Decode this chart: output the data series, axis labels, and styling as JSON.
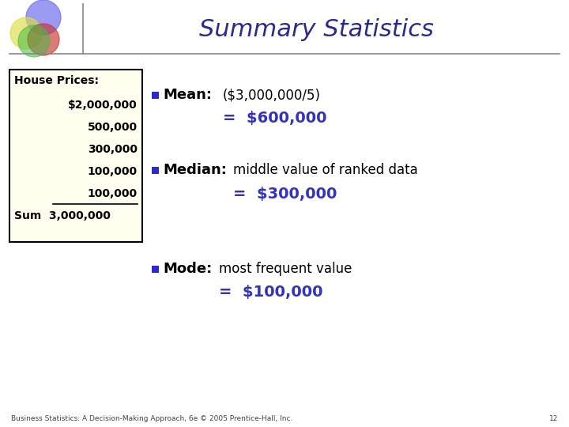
{
  "title": "Summary Statistics",
  "title_color": "#2B2B8C",
  "title_fontsize": 22,
  "bg_color": "#FFFFFF",
  "slide_number": "12",
  "footer": "Business Statistics: A Decision-Making Approach, 6e © 2005 Prentice-Hall, Inc.",
  "house_prices_label": "House Prices:",
  "house_prices_values": [
    "$2,000,000",
    "500,000",
    "300,000",
    "100,000",
    "100,000"
  ],
  "house_prices_sum": "Sum  3,000,000",
  "box_bg": "#FFFFF0",
  "box_edge": "#000000",
  "bullet_color": "#2B2BCC",
  "mean_label": "Mean:",
  "mean_line1": "($3,000,000/5)",
  "mean_line2": "=  $600,000",
  "median_label": "Median:",
  "median_line1": "middle value of ranked data",
  "median_line2": "=  $300,000",
  "mode_label": "Mode:",
  "mode_line1": "most frequent value",
  "mode_line2": "=  $100,000",
  "highlight_color": "#3333BB",
  "text_color": "#000000",
  "separator_color": "#888888"
}
